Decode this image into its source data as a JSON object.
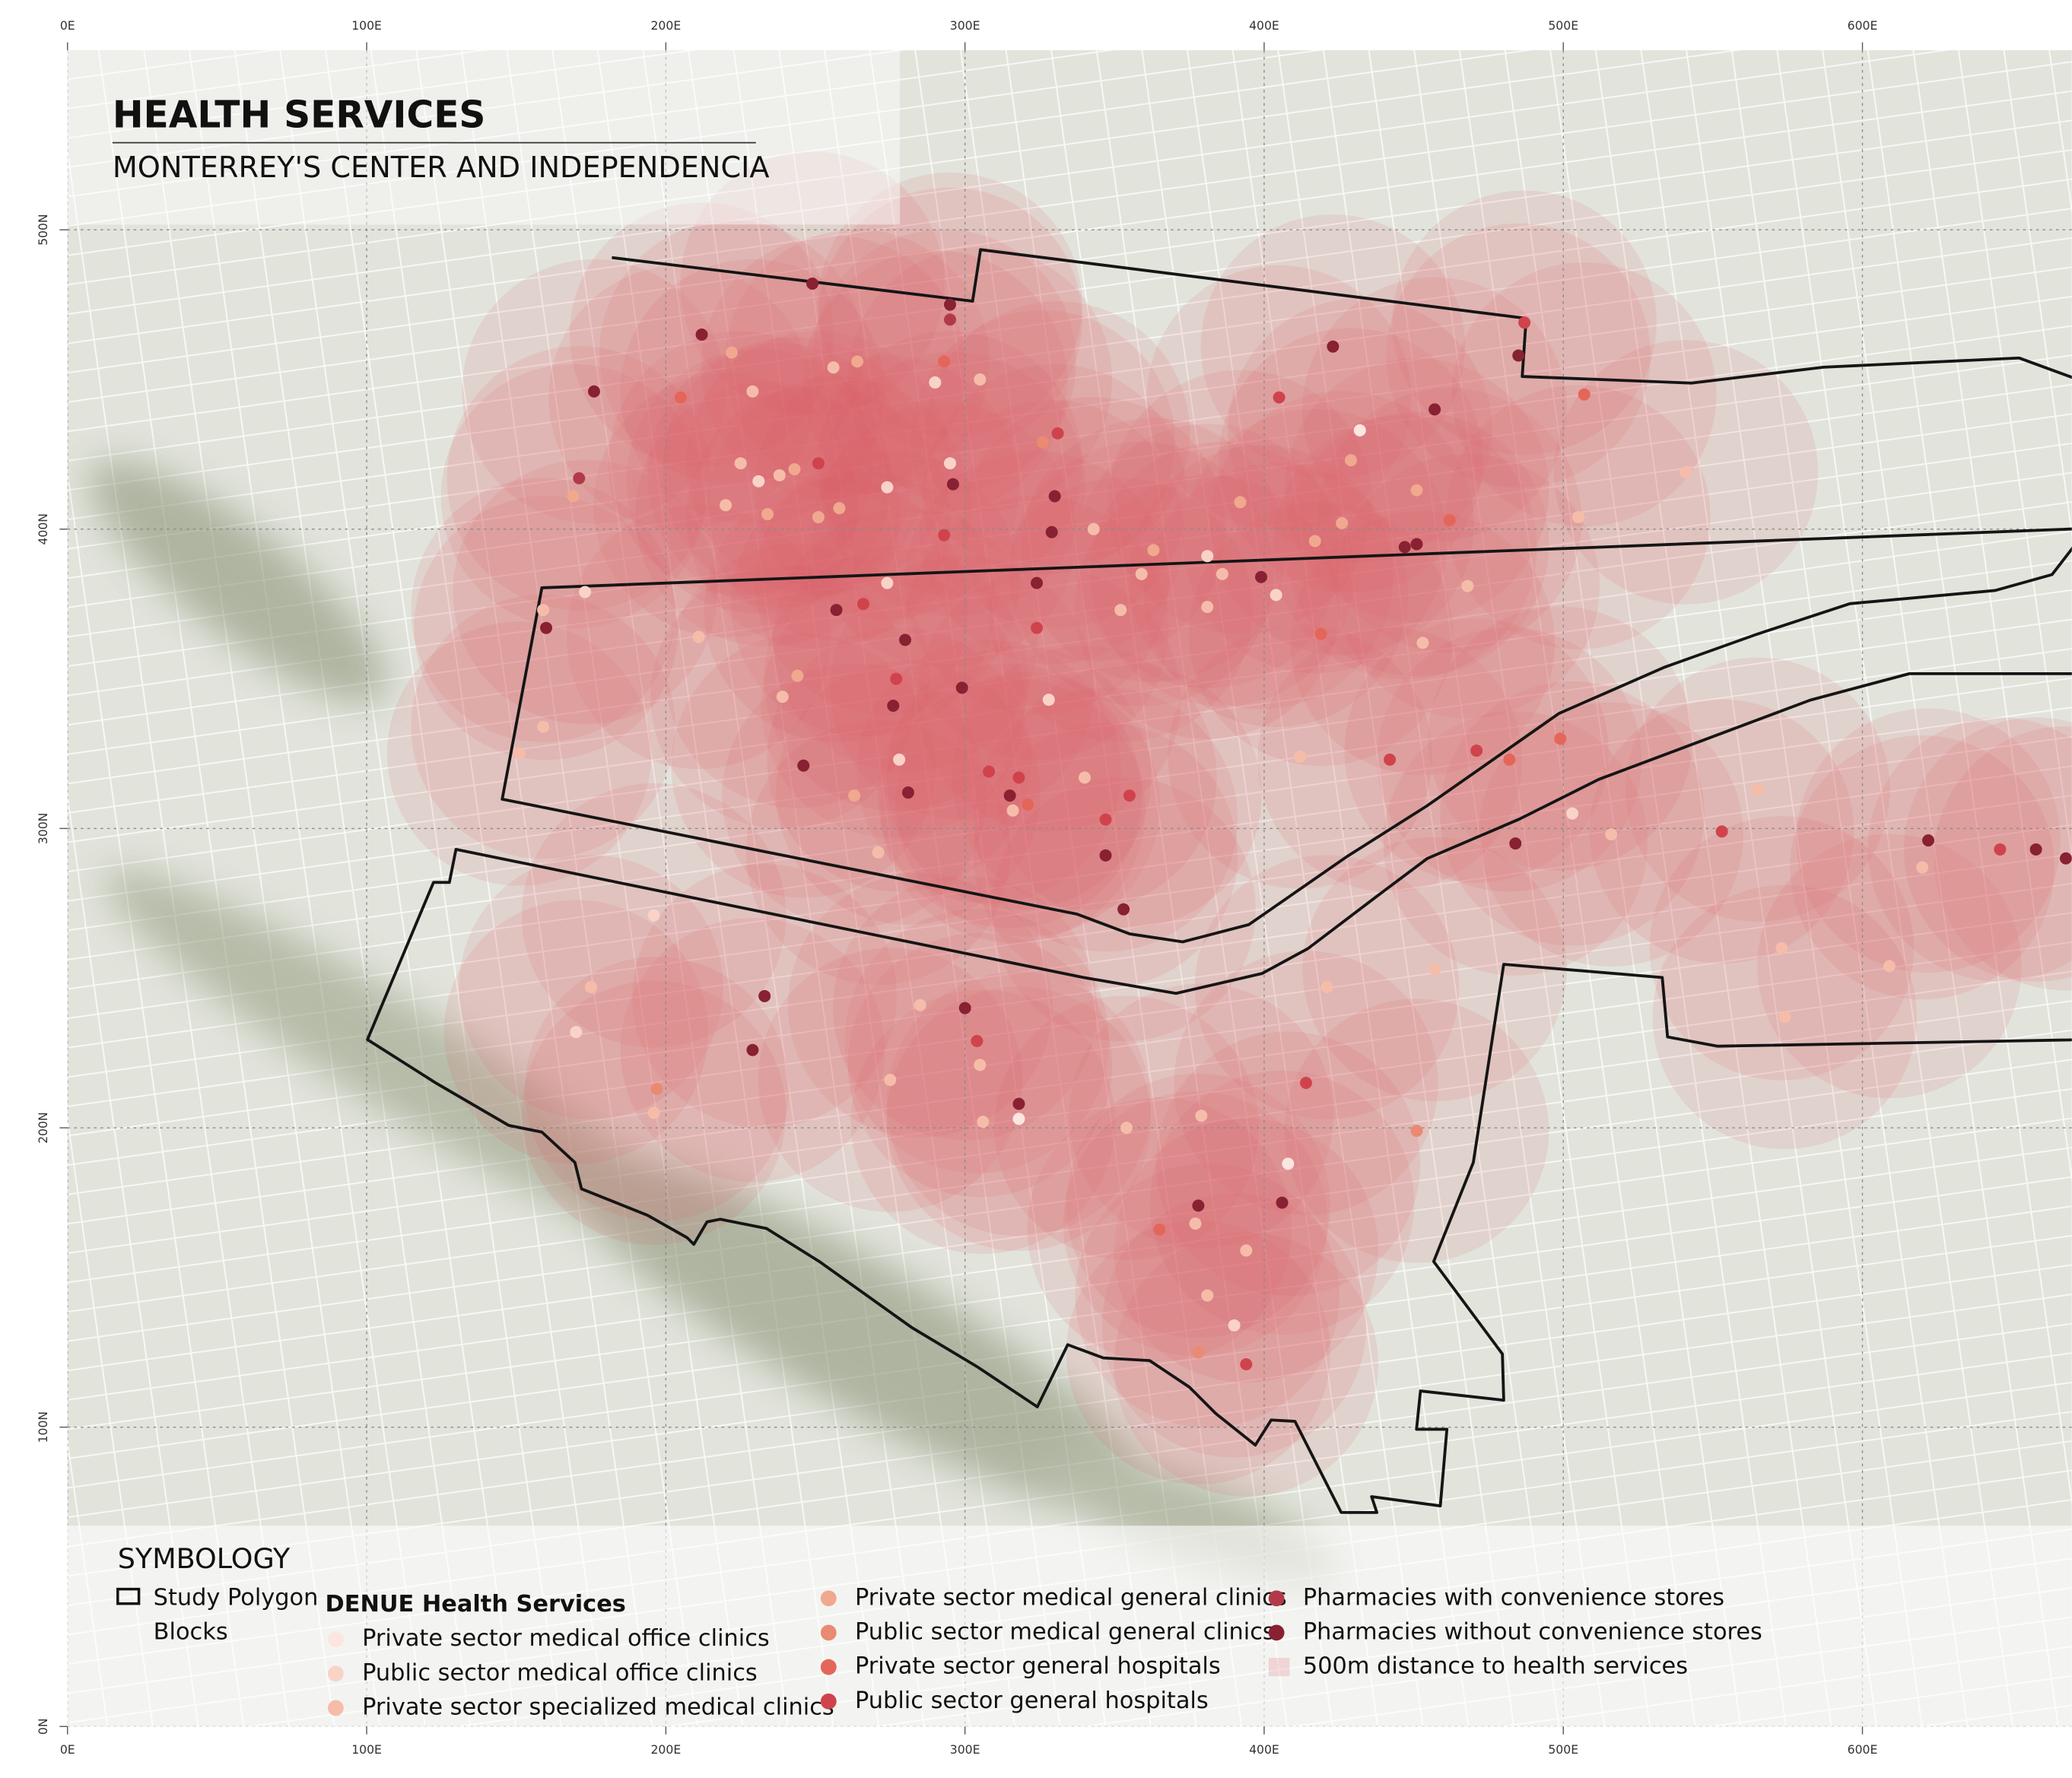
{
  "chart_data": {
    "type": "map",
    "title": "HEALTH SERVICES",
    "subtitle": "MONTERREY'S CENTER AND INDEPENDENCIA",
    "legend_title": "SYMBOLOGY",
    "study_polygon_label": "Study Polygon",
    "blocks_label": "Blocks",
    "services_label": "DENUE Health Services",
    "buffer_label": "500m distance to health services",
    "buffer_color": "#dc5a64",
    "xlim": [
      0,
      670
    ],
    "ylim": [
      0,
      560
    ],
    "xticks": [
      {
        "value": 0,
        "label": "0E"
      },
      {
        "value": 100,
        "label": "100E"
      },
      {
        "value": 200,
        "label": "200E"
      },
      {
        "value": 300,
        "label": "300E"
      },
      {
        "value": 400,
        "label": "400E"
      },
      {
        "value": 500,
        "label": "500E"
      },
      {
        "value": 600,
        "label": "600E"
      }
    ],
    "yticks": [
      {
        "value": 0,
        "label": "0N"
      },
      {
        "value": 100,
        "label": "100N"
      },
      {
        "value": 200,
        "label": "200N"
      },
      {
        "value": 300,
        "label": "300N"
      },
      {
        "value": 400,
        "label": "400N"
      },
      {
        "value": 500,
        "label": "500N"
      }
    ],
    "grid": true,
    "series": [
      {
        "name": "Private sector medical office clinics",
        "color": "#fbe6e0",
        "x": [
          432,
          408,
          318
        ],
        "y": [
          433,
          188,
          203
        ]
      },
      {
        "name": "Public sector medical office clinics",
        "color": "#f9d3c8",
        "x": [
          290,
          231,
          274,
          295,
          274,
          173,
          278,
          328,
          381,
          404,
          196,
          170,
          503,
          390
        ],
        "y": [
          449,
          416,
          414,
          422,
          382,
          379,
          323,
          343,
          391,
          378,
          271,
          232,
          305,
          134
        ]
      },
      {
        "name": "Private sector specialized medical clinics",
        "color": "#f5bda9",
        "x": [
          229,
          256,
          305,
          225,
          238,
          220,
          211,
          159,
          239,
          271,
          316,
          340,
          343,
          352,
          359,
          386,
          381,
          468,
          453,
          541,
          505,
          412,
          516,
          565,
          620,
          573,
          574,
          609,
          457,
          421,
          175,
          196,
          285,
          305,
          306,
          275,
          354,
          379,
          377,
          394,
          381,
          151,
          159
        ],
        "y": [
          446,
          454,
          450,
          422,
          418,
          408,
          364,
          373,
          344,
          292,
          306,
          317,
          400,
          373,
          385,
          385,
          374,
          381,
          362,
          419,
          404,
          324,
          298,
          313,
          287,
          260,
          237,
          254,
          253,
          247,
          247,
          205,
          241,
          221,
          202,
          216,
          200,
          204,
          168,
          159,
          144,
          325,
          334
        ]
      },
      {
        "name": "Private sector medical general clinics",
        "color": "#f0a88f",
        "x": [
          222,
          264,
          169,
          243,
          234,
          251,
          258,
          244,
          263,
          363,
          392,
          426,
          429,
          417,
          451
        ],
        "y": [
          459,
          456,
          411,
          420,
          405,
          404,
          407,
          351,
          311,
          393,
          409,
          402,
          423,
          396,
          413
        ]
      },
      {
        "name": "Public sector medical general clinics",
        "color": "#ea8a72",
        "x": [
          326,
          197,
          451,
          378
        ],
        "y": [
          429,
          213,
          199,
          125
        ]
      },
      {
        "name": "Private sector general hospitals",
        "color": "#e4665a",
        "x": [
          293,
          205,
          321,
          419,
          462,
          482,
          499,
          507,
          365
        ],
        "y": [
          456,
          444,
          308,
          365,
          403,
          323,
          330,
          445,
          166
        ]
      },
      {
        "name": "Public sector general hospitals",
        "color": "#d0434c",
        "x": [
          251,
          293,
          331,
          266,
          277,
          308,
          318,
          347,
          355,
          324,
          405,
          471,
          442,
          487,
          553,
          646,
          304,
          414,
          394
        ],
        "y": [
          422,
          398,
          432,
          375,
          350,
          319,
          317,
          303,
          311,
          367,
          444,
          326,
          323,
          469,
          299,
          293,
          229,
          215,
          121
        ]
      },
      {
        "name": "Pharmacies with convenience stores",
        "color": "#b23a48",
        "x": [
          295,
          171
        ],
        "y": [
          470,
          417
        ]
      },
      {
        "name": "Pharmacies without convenience stores",
        "color": "#882131",
        "x": [
          212,
          249,
          295,
          176,
          296,
          330,
          329,
          324,
          257,
          280,
          160,
          299,
          276,
          246,
          281,
          315,
          347,
          353,
          399,
          423,
          447,
          451,
          457,
          484,
          485,
          622,
          658,
          668,
          233,
          229,
          300,
          318,
          406,
          378
        ],
        "y": [
          465,
          482,
          475,
          446,
          415,
          411,
          399,
          382,
          373,
          363,
          367,
          347,
          341,
          321,
          312,
          311,
          291,
          273,
          384,
          461,
          394,
          395,
          440,
          295,
          458,
          296,
          293,
          290,
          244,
          226,
          240,
          208,
          175,
          174
        ]
      }
    ]
  }
}
